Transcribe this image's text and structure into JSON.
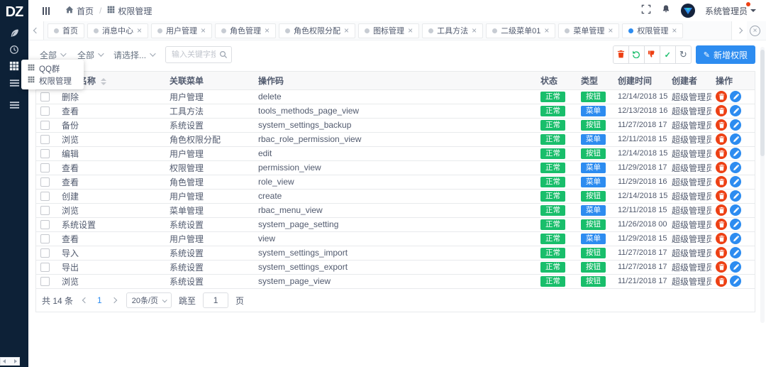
{
  "app": {
    "logo_text": "DZ"
  },
  "colors": {
    "primary": "#2d8cf0",
    "success": "#19be6b",
    "error": "#ed4014",
    "sidebar_bg": "#0d2137"
  },
  "header": {
    "breadcrumb": {
      "home": "首页",
      "separator": "/",
      "current": "权限管理"
    },
    "user_name": "系统管理员"
  },
  "tabs": [
    {
      "label": "首页",
      "closable": false,
      "active": false
    },
    {
      "label": "消息中心",
      "closable": true,
      "active": false
    },
    {
      "label": "用户管理",
      "closable": true,
      "active": false
    },
    {
      "label": "角色管理",
      "closable": true,
      "active": false
    },
    {
      "label": "角色权限分配",
      "closable": true,
      "active": false
    },
    {
      "label": "图标管理",
      "closable": true,
      "active": false
    },
    {
      "label": "工具方法",
      "closable": true,
      "active": false
    },
    {
      "label": "二级菜单01",
      "closable": true,
      "active": false
    },
    {
      "label": "菜单管理",
      "closable": true,
      "active": false
    },
    {
      "label": "权限管理",
      "closable": true,
      "active": true
    }
  ],
  "sidebar_popup": {
    "items": [
      {
        "label": "QQ群"
      },
      {
        "label": "权限管理"
      }
    ]
  },
  "filters": {
    "first_select_value": "全部",
    "status_select_value": "全部",
    "menu_select_placeholder": "请选择...",
    "search_placeholder": "输入关键字搜索..."
  },
  "toolbar": {
    "add_button_label": "新增权限"
  },
  "table": {
    "columns": [
      "权限名称",
      "关联菜单",
      "操作码",
      "状态",
      "类型",
      "创建时间",
      "创建者",
      "操作"
    ],
    "rows": [
      {
        "name": "删除",
        "menu": "用户管理",
        "code": "delete",
        "status": "正常",
        "type": "按钮",
        "type_style": "success",
        "time": "12/14/2018 15:2...",
        "creator": "超级管理员"
      },
      {
        "name": "查看",
        "menu": "工具方法",
        "code": "tools_methods_page_view",
        "status": "正常",
        "type": "菜单",
        "type_style": "primary",
        "time": "12/13/2018 16:5...",
        "creator": "超级管理员"
      },
      {
        "name": "备份",
        "menu": "系统设置",
        "code": "system_settings_backup",
        "status": "正常",
        "type": "按钮",
        "type_style": "success",
        "time": "11/27/2018 17:3...",
        "creator": "超级管理员"
      },
      {
        "name": "浏览",
        "menu": "角色权限分配",
        "code": "rbac_role_permission_view",
        "status": "正常",
        "type": "菜单",
        "type_style": "primary",
        "time": "12/11/2018 15:2...",
        "creator": "超级管理员"
      },
      {
        "name": "编辑",
        "menu": "用户管理",
        "code": "edit",
        "status": "正常",
        "type": "按钮",
        "type_style": "success",
        "time": "12/14/2018 15:2...",
        "creator": "超级管理员"
      },
      {
        "name": "查看",
        "menu": "权限管理",
        "code": "permission_view",
        "status": "正常",
        "type": "菜单",
        "type_style": "primary",
        "time": "11/29/2018 17:4...",
        "creator": "超级管理员"
      },
      {
        "name": "查看",
        "menu": "角色管理",
        "code": "role_view",
        "status": "正常",
        "type": "菜单",
        "type_style": "primary",
        "time": "11/29/2018 16:3...",
        "creator": "超级管理员"
      },
      {
        "name": "创建",
        "menu": "用户管理",
        "code": "create",
        "status": "正常",
        "type": "按钮",
        "type_style": "success",
        "time": "12/14/2018 15:2...",
        "creator": "超级管理员"
      },
      {
        "name": "浏览",
        "menu": "菜单管理",
        "code": "rbac_menu_view",
        "status": "正常",
        "type": "菜单",
        "type_style": "primary",
        "time": "12/11/2018 15:2...",
        "creator": "超级管理员"
      },
      {
        "name": "系统设置",
        "menu": "系统设置",
        "code": "system_page_setting",
        "status": "正常",
        "type": "按钮",
        "type_style": "success",
        "time": "11/26/2018 00:0...",
        "creator": "超级管理员"
      },
      {
        "name": "查看",
        "menu": "用户管理",
        "code": "view",
        "status": "正常",
        "type": "菜单",
        "type_style": "primary",
        "time": "11/29/2018 15:5...",
        "creator": "超级管理员"
      },
      {
        "name": "导入",
        "menu": "系统设置",
        "code": "system_settings_import",
        "status": "正常",
        "type": "按钮",
        "type_style": "success",
        "time": "11/27/2018 17:3...",
        "creator": "超级管理员"
      },
      {
        "name": "导出",
        "menu": "系统设置",
        "code": "system_settings_export",
        "status": "正常",
        "type": "按钮",
        "type_style": "success",
        "time": "11/27/2018 17:3...",
        "creator": "超级管理员"
      },
      {
        "name": "浏览",
        "menu": "系统设置",
        "code": "system_page_view",
        "status": "正常",
        "type": "按钮",
        "type_style": "success",
        "time": "11/21/2018 17:0...",
        "creator": "超级管理员"
      }
    ]
  },
  "pagination": {
    "total_text": "共 14 条",
    "current_page": "1",
    "page_size_label": "20条/页",
    "jump_label": "跳至",
    "jump_value": "1",
    "jump_suffix": "页"
  }
}
